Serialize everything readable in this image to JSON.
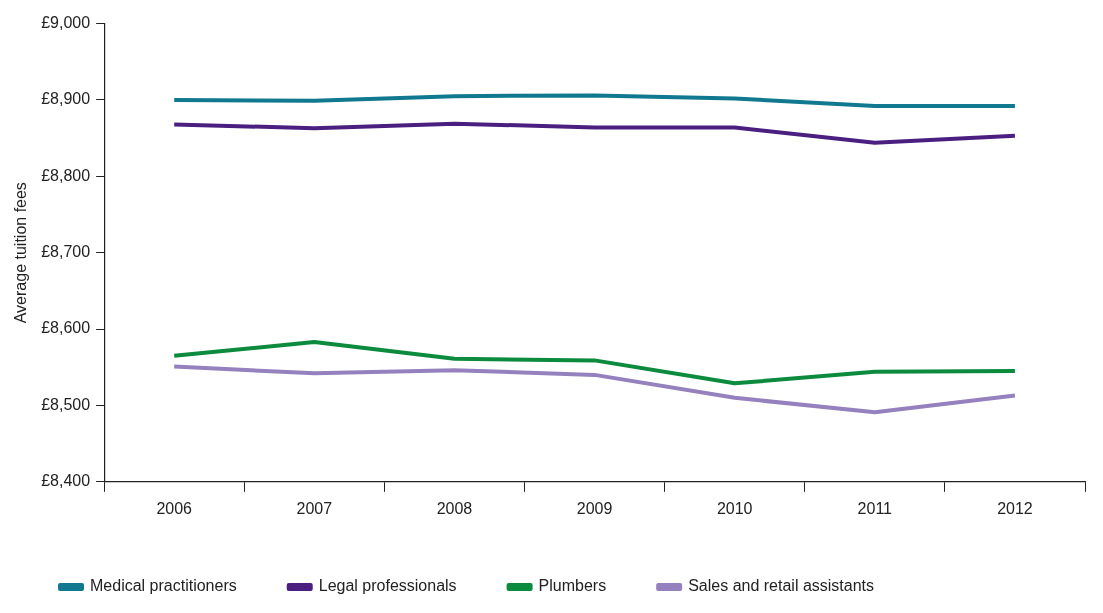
{
  "chart_data": {
    "type": "line",
    "ylabel": "Average tuition fees",
    "categories": [
      "2006",
      "2007",
      "2008",
      "2009",
      "2010",
      "2011",
      "2012"
    ],
    "ylim": [
      8400,
      9000
    ],
    "yticks": [
      {
        "value": 8400,
        "label": "£8,400"
      },
      {
        "value": 8500,
        "label": "£8,500"
      },
      {
        "value": 8600,
        "label": "£8,600"
      },
      {
        "value": 8700,
        "label": "£8,700"
      },
      {
        "value": 8800,
        "label": "£8,800"
      },
      {
        "value": 8900,
        "label": "£8,900"
      },
      {
        "value": 9000,
        "label": "£9,000"
      }
    ],
    "grid": false,
    "legend": "bottom",
    "marker": "none",
    "line_style": "solid",
    "series": [
      {
        "name": "Medical practitioners",
        "color": "#10798f",
        "values": [
          8900,
          8899,
          8905,
          8906,
          8902,
          8892,
          8892
        ]
      },
      {
        "name": "Legal professionals",
        "color": "#4b1f80",
        "values": [
          8868,
          8863,
          8869,
          8864,
          8864,
          8844,
          8853
        ]
      },
      {
        "name": "Plumbers",
        "color": "#0c8a3e",
        "values": [
          8565,
          8583,
          8561,
          8559,
          8529,
          8544,
          8545
        ]
      },
      {
        "name": "Sales and retail assistants",
        "color": "#9581bd",
        "values": [
          8551,
          8542,
          8546,
          8540,
          8510,
          8491,
          8513
        ]
      }
    ]
  }
}
